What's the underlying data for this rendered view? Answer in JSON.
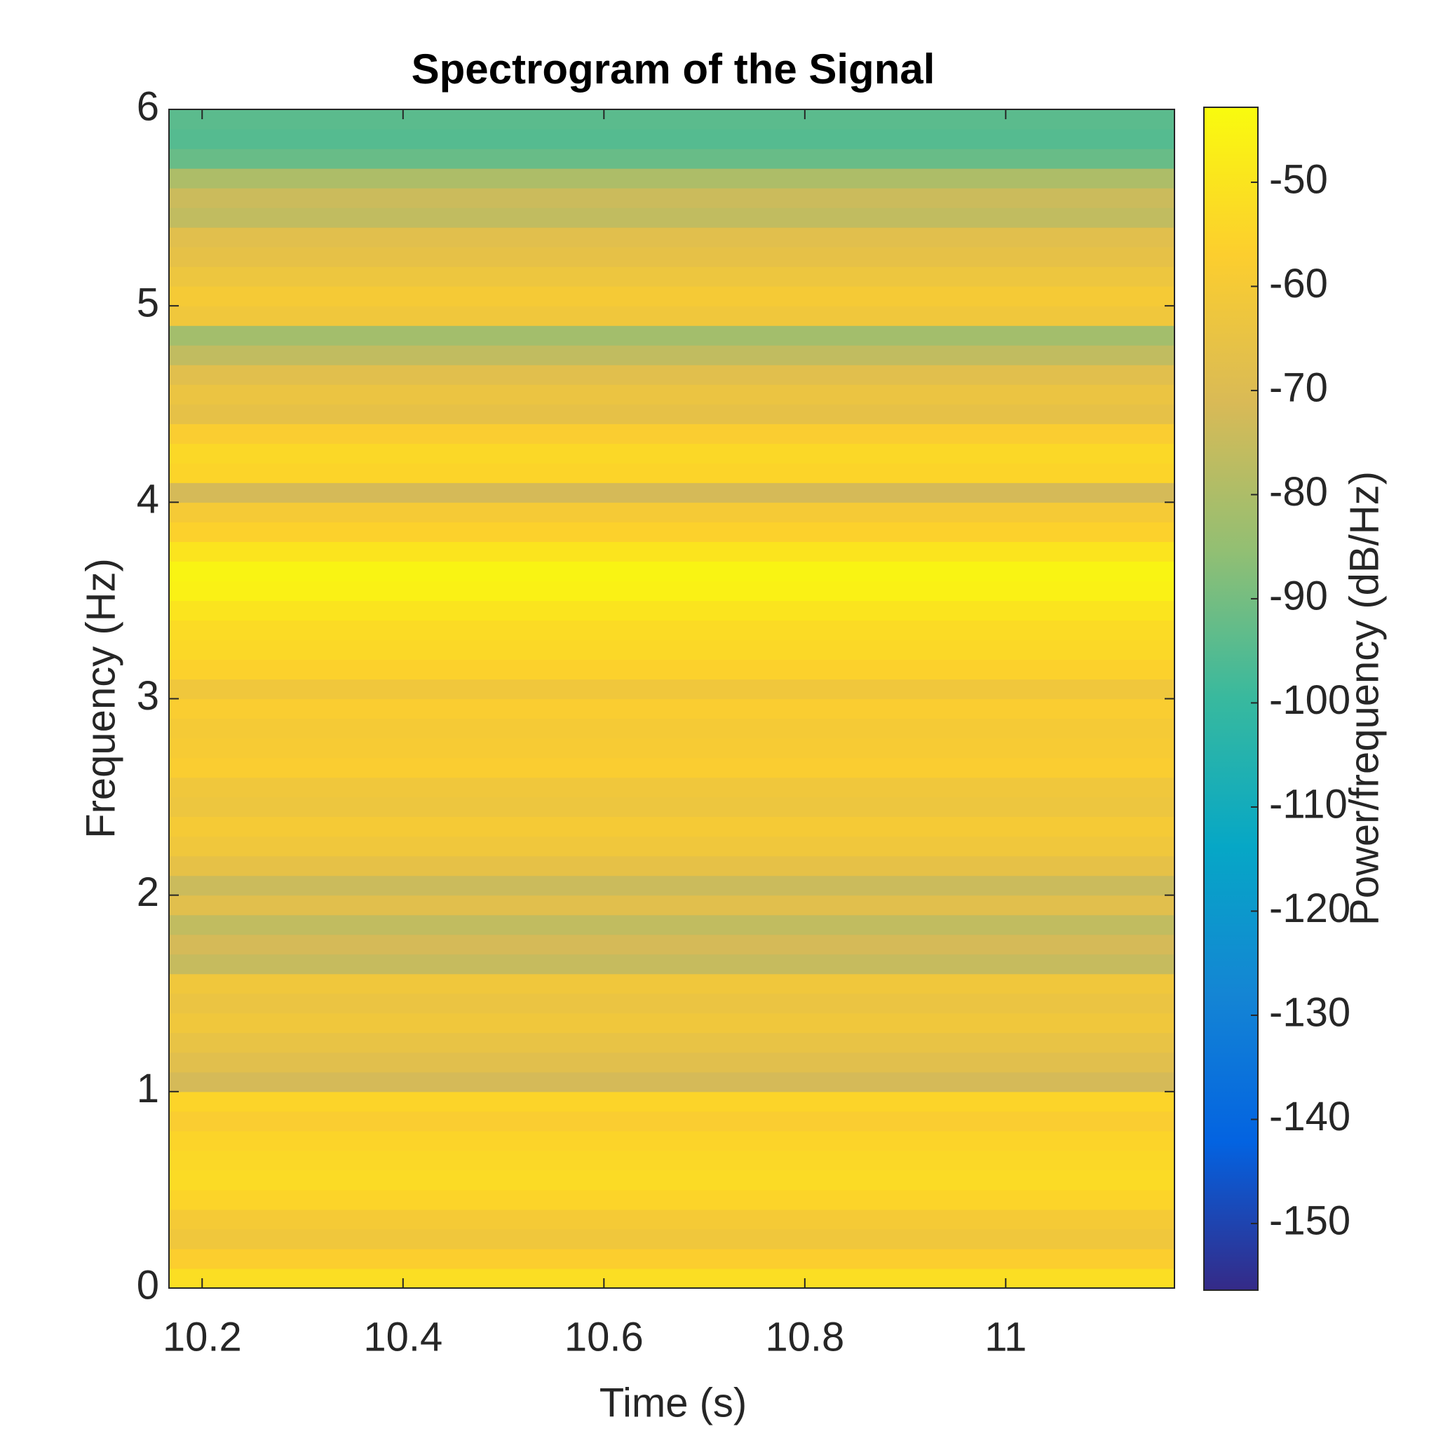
{
  "chart_data": {
    "type": "heatmap",
    "title": "Spectrogram of the Signal",
    "xlabel": "Time (s)",
    "ylabel": "Frequency (Hz)",
    "colorbar_label": "Power/frequency (dB/Hz)",
    "colormap": "parula",
    "xlim": [
      10.167,
      11.168
    ],
    "xticks": [
      10.2,
      10.4,
      10.6,
      10.8,
      11
    ],
    "ylim": [
      0,
      6
    ],
    "yticks": [
      0,
      1,
      2,
      3,
      4,
      5,
      6
    ],
    "clim": [
      -156.4,
      -42.8
    ],
    "cticks": [
      -150,
      -140,
      -130,
      -120,
      -110,
      -100,
      -90,
      -80,
      -70,
      -60,
      -50
    ],
    "ybins": [
      0,
      0.1,
      0.2,
      0.3,
      0.4,
      0.5,
      0.6,
      0.7,
      0.8,
      0.9,
      1,
      1.1,
      1.2,
      1.3,
      1.4,
      1.5,
      1.6,
      1.7,
      1.8,
      1.9,
      2,
      2.1,
      2.2,
      2.3,
      2.4,
      2.5,
      2.6,
      2.7,
      2.8,
      2.9,
      3,
      3.1,
      3.2,
      3.3,
      3.4,
      3.5,
      3.6,
      3.7,
      3.8,
      3.9,
      4,
      4.1,
      4.2,
      4.3,
      4.4,
      4.5,
      4.6,
      4.7,
      4.8,
      4.9,
      5,
      5.1,
      5.2,
      5.3,
      5.4,
      5.5,
      5.6,
      5.7,
      5.8,
      5.9,
      6
    ],
    "values": [
      -52,
      -57,
      -62,
      -60,
      -55,
      -53,
      -54,
      -55,
      -58,
      -55,
      -72,
      -68,
      -65,
      -62,
      -64,
      -62,
      -75,
      -72,
      -76,
      -68,
      -74,
      -66,
      -62,
      -60,
      -63,
      -62,
      -58,
      -59,
      -60,
      -58,
      -62,
      -56,
      -54,
      -53,
      -50,
      -46,
      -45,
      -50,
      -56,
      -60,
      -72,
      -55,
      -54,
      -58,
      -66,
      -64,
      -68,
      -76,
      -82,
      -62,
      -60,
      -63,
      -66,
      -68,
      -76,
      -74,
      -80,
      -92,
      -95,
      -94
    ]
  }
}
